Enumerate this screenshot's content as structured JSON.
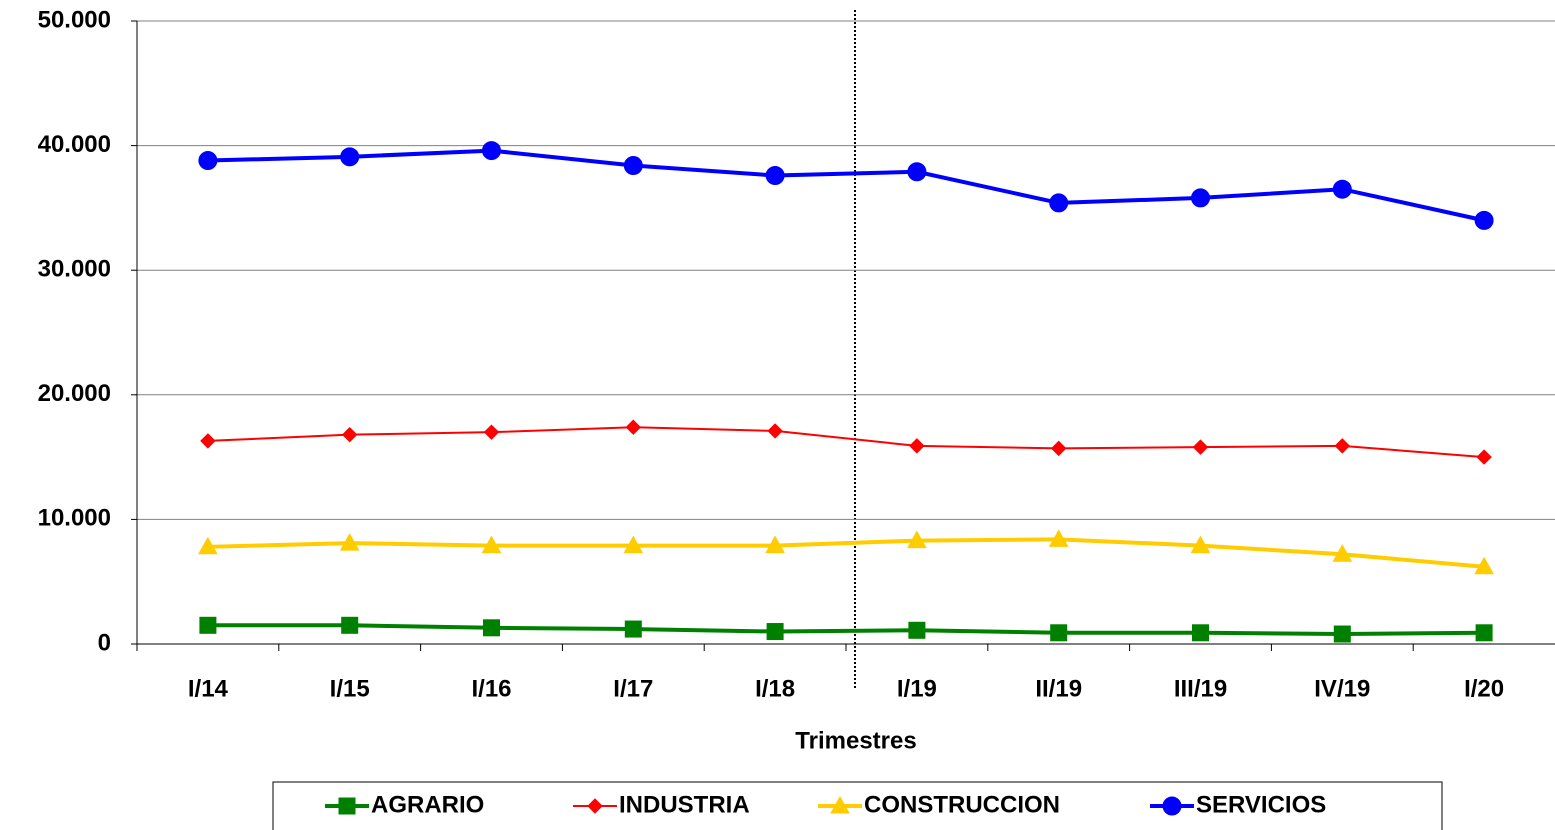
{
  "chart_data": {
    "type": "line",
    "x_label": "Trimestres",
    "categories": [
      "I/14",
      "I/15",
      "I/16",
      "I/17",
      "I/18",
      "I/19",
      "II/19",
      "III/19",
      "IV/19",
      "I/20"
    ],
    "series": [
      {
        "name": "AGRARIO",
        "color": "#008000",
        "marker": "square",
        "values": [
          1500,
          1500,
          1300,
          1200,
          1000,
          1100,
          900,
          900,
          800,
          900
        ]
      },
      {
        "name": "INDUSTRIA",
        "color": "#ff0000",
        "marker": "diamond",
        "values": [
          16300,
          16800,
          17000,
          17400,
          17100,
          15900,
          15700,
          15800,
          15900,
          15000
        ]
      },
      {
        "name": "CONSTRUCCION",
        "color": "#ffcc00",
        "marker": "triangle",
        "values": [
          7800,
          8100,
          7900,
          7900,
          7900,
          8300,
          8400,
          7900,
          7200,
          6200
        ]
      },
      {
        "name": "SERVICIOS",
        "color": "#0000ff",
        "marker": "circle",
        "values": [
          38800,
          39100,
          39600,
          38400,
          37600,
          37900,
          35400,
          35800,
          36500,
          34000
        ]
      }
    ],
    "ylim": [
      0,
      50000
    ],
    "yticks": [
      0,
      {
        "value": 10000,
        "label": "10.000"
      },
      {
        "value": 20000,
        "label": "20.000"
      },
      {
        "value": 30000,
        "label": "30.000"
      },
      {
        "value": 40000,
        "label": "40.000"
      },
      {
        "value": 50000,
        "label": "50.000"
      }
    ],
    "grid": true
  }
}
